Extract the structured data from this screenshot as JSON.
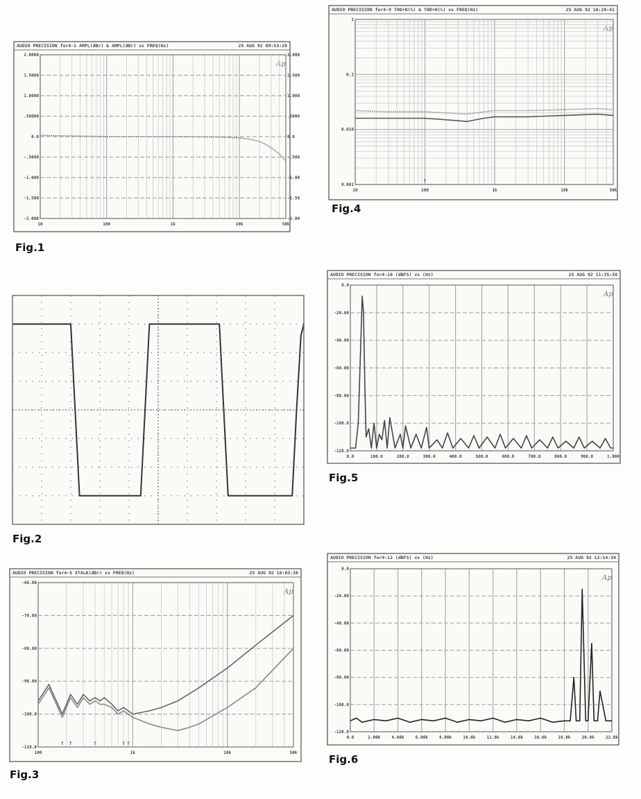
{
  "captions": [
    "Fig.1",
    "Fig.2",
    "Fig.3",
    "Fig.4",
    "Fig.5",
    "Fig.6"
  ],
  "logo_text": "Ap",
  "chart_data": [
    {
      "id": "fig1",
      "type": "line",
      "header": "AUDIO PRECISION for4-1 AMPL(dBr) & AMPL(dBr) vs FREQ(Hz)",
      "date": "25 AUG 92 09:53:28",
      "x_scale": "log",
      "xlim": [
        10,
        50000
      ],
      "ylim": [
        -2,
        2
      ],
      "x_ticks": [
        {
          "v": 10,
          "l": "10"
        },
        {
          "v": 100,
          "l": "100"
        },
        {
          "v": 1000,
          "l": "1k"
        },
        {
          "v": 10000,
          "l": "10k"
        },
        {
          "v": 50000,
          "l": "50k"
        }
      ],
      "y_ticks_left": [
        {
          "v": 2,
          "l": "2.0000"
        },
        {
          "v": 1.5,
          "l": "1.5000"
        },
        {
          "v": 1,
          "l": "1.0000"
        },
        {
          "v": 0.5,
          "l": ".50000"
        },
        {
          "v": 0,
          "l": "0.0"
        },
        {
          "v": -0.5,
          "l": "-.5000"
        },
        {
          "v": -1,
          "l": "-1.000"
        },
        {
          "v": -1.5,
          "l": "-1.500"
        },
        {
          "v": -2,
          "l": "-2.000"
        }
      ],
      "y_ticks_right": [
        {
          "v": 2,
          "l": "2.000"
        },
        {
          "v": 1.5,
          "l": "1.500"
        },
        {
          "v": 1,
          "l": "1.000"
        },
        {
          "v": 0.5,
          "l": ".5000"
        },
        {
          "v": 0,
          "l": "0.0"
        },
        {
          "v": -0.5,
          "l": "-.500"
        },
        {
          "v": -1,
          "l": "-1.00"
        },
        {
          "v": -1.5,
          "l": "-1.50"
        },
        {
          "v": -2,
          "l": "-2.00"
        }
      ],
      "series": [
        {
          "x": [
            10,
            20,
            50,
            100,
            500,
            1000,
            5000,
            10000,
            15000,
            20000,
            25000,
            30000,
            40000,
            50000
          ],
          "y": [
            0.03,
            0.02,
            0.01,
            0.0,
            0.0,
            0.0,
            -0.01,
            -0.03,
            -0.07,
            -0.12,
            -0.19,
            -0.27,
            -0.42,
            -0.6
          ],
          "color": "#888",
          "dash": "2,1"
        }
      ]
    },
    {
      "id": "fig2",
      "type": "line",
      "x_scale": "linear",
      "xlim": [
        0,
        10
      ],
      "ylim": [
        -4,
        4
      ],
      "series": [
        {
          "x": [
            0,
            2,
            2.15,
            2.3,
            4.4,
            4.55,
            4.7,
            7.1,
            7.25,
            7.4,
            9.6,
            9.75,
            9.9,
            10
          ],
          "y": [
            3,
            3,
            0,
            -3,
            -3,
            0,
            3,
            3,
            0,
            -3,
            -3,
            0,
            2.6,
            3
          ],
          "color": "#333"
        }
      ]
    },
    {
      "id": "fig3",
      "type": "line",
      "header": "AUDIO PRECISION for4-5 XTALK(dBr) vs FREQ(Hz)",
      "date": "25 AUG 92 10:03:38",
      "x_scale": "log",
      "xlim": [
        100,
        50000
      ],
      "ylim": [
        -110,
        -60
      ],
      "x_ticks": [
        {
          "v": 100,
          "l": "100"
        },
        {
          "v": 1000,
          "l": "1k"
        },
        {
          "v": 10000,
          "l": "10k"
        },
        {
          "v": 50000,
          "l": "50k"
        }
      ],
      "y_ticks_left": [
        {
          "v": -60,
          "l": "-60.00"
        },
        {
          "v": -70,
          "l": "-70.00"
        },
        {
          "v": -80,
          "l": "-80.00"
        },
        {
          "v": -90,
          "l": "-90.00"
        },
        {
          "v": -100,
          "l": "-100.0"
        },
        {
          "v": -110,
          "l": "-110.0"
        }
      ],
      "markers": [
        "T",
        "T",
        "T",
        "T",
        "T"
      ],
      "marker_x": [
        180,
        220,
        400,
        800,
        900
      ],
      "series": [
        {
          "x": [
            100,
            130,
            180,
            220,
            260,
            300,
            350,
            400,
            450,
            500,
            600,
            700,
            800,
            1000,
            1500,
            2000,
            3000,
            5000,
            10000,
            20000,
            50000
          ],
          "y": [
            -96,
            -91,
            -100,
            -94,
            -97,
            -94,
            -96,
            -95,
            -96,
            -95,
            -97,
            -99,
            -98,
            -100,
            -99,
            -98,
            -96,
            -92,
            -86,
            -79,
            -70
          ],
          "color": "#666"
        },
        {
          "x": [
            100,
            130,
            180,
            220,
            260,
            300,
            350,
            400,
            450,
            500,
            600,
            700,
            800,
            1000,
            1500,
            2000,
            3000,
            4000,
            5000,
            10000,
            20000,
            50000
          ],
          "y": [
            -97,
            -92,
            -101,
            -95,
            -98,
            -95,
            -97,
            -96,
            -97,
            -97,
            -98,
            -100,
            -99,
            -101,
            -103,
            -104,
            -105,
            -104,
            -103,
            -98,
            -92,
            -80
          ],
          "color": "#888"
        }
      ]
    },
    {
      "id": "fig4",
      "type": "line",
      "header": "AUDIO PRECISION for4-9 THD+N(%) & THD+N(%) vs FREQ(Hz)",
      "date": "25 AUG 92 10:28:41",
      "x_scale": "log",
      "y_scale": "log",
      "xlim": [
        10,
        50000
      ],
      "ylim": [
        0.001,
        1
      ],
      "x_ticks": [
        {
          "v": 10,
          "l": "10"
        },
        {
          "v": 100,
          "l": "100"
        },
        {
          "v": 1000,
          "l": "1k"
        },
        {
          "v": 10000,
          "l": "10k"
        },
        {
          "v": 50000,
          "l": "50k"
        }
      ],
      "y_ticks_left": [
        {
          "v": 1,
          "l": "1"
        },
        {
          "v": 0.1,
          "l": "0.1"
        },
        {
          "v": 0.01,
          "l": "0.010"
        },
        {
          "v": 0.001,
          "l": "0.001"
        }
      ],
      "markers": [
        "T"
      ],
      "marker_x": [
        100
      ],
      "series": [
        {
          "x": [
            10,
            30,
            100,
            200,
            400,
            700,
            1000,
            3000,
            10000,
            30000,
            50000
          ],
          "y": [
            0.016,
            0.016,
            0.016,
            0.015,
            0.014,
            0.016,
            0.017,
            0.017,
            0.018,
            0.019,
            0.018
          ],
          "color": "#555"
        },
        {
          "x": [
            10,
            30,
            100,
            200,
            400,
            700,
            1000,
            3000,
            10000,
            30000,
            50000
          ],
          "y": [
            0.022,
            0.021,
            0.021,
            0.02,
            0.019,
            0.021,
            0.022,
            0.022,
            0.023,
            0.024,
            0.023
          ],
          "color": "#999",
          "dash": "2,1"
        }
      ]
    },
    {
      "id": "fig5",
      "type": "line",
      "header": "AUDIO PRECISION for4-10 (dBFS) vs (Hz)",
      "date": "25 AUG 92 11:35:38",
      "x_scale": "linear",
      "xlim": [
        0,
        1000
      ],
      "ylim": [
        -120,
        0
      ],
      "x_ticks": [
        {
          "v": 0,
          "l": "0.0"
        },
        {
          "v": 100,
          "l": "100.0"
        },
        {
          "v": 200,
          "l": "200.0"
        },
        {
          "v": 300,
          "l": "300.0"
        },
        {
          "v": 400,
          "l": "400.0"
        },
        {
          "v": 500,
          "l": "500.0"
        },
        {
          "v": 600,
          "l": "600.0"
        },
        {
          "v": 700,
          "l": "700.0"
        },
        {
          "v": 800,
          "l": "800.0"
        },
        {
          "v": 900,
          "l": "900.0"
        },
        {
          "v": 1000,
          "l": "1.000"
        }
      ],
      "y_ticks_left": [
        {
          "v": 0,
          "l": "0.0"
        },
        {
          "v": -20,
          "l": "-20.00"
        },
        {
          "v": -40,
          "l": "-40.00"
        },
        {
          "v": -60,
          "l": "-60.00"
        },
        {
          "v": -80,
          "l": "-80.00"
        },
        {
          "v": -100,
          "l": "-100.0"
        },
        {
          "v": -120,
          "l": "-120.0"
        }
      ],
      "series": [
        {
          "x": [
            0,
            20,
            30,
            40,
            45,
            50,
            55,
            60,
            70,
            80,
            90,
            100,
            110,
            120,
            130,
            140,
            150,
            170,
            190,
            200,
            210,
            230,
            250,
            270,
            290,
            300,
            330,
            350,
            370,
            390,
            420,
            450,
            470,
            490,
            520,
            550,
            570,
            590,
            620,
            650,
            670,
            690,
            720,
            750,
            770,
            790,
            820,
            850,
            870,
            890,
            920,
            950,
            970,
            990,
            1000
          ],
          "y": [
            -118,
            -118,
            -100,
            -40,
            -8,
            -20,
            -70,
            -110,
            -104,
            -118,
            -100,
            -118,
            -108,
            -112,
            -98,
            -118,
            -96,
            -118,
            -108,
            -118,
            -102,
            -118,
            -108,
            -118,
            -103,
            -118,
            -112,
            -118,
            -107,
            -118,
            -111,
            -118,
            -109,
            -118,
            -110,
            -118,
            -108,
            -118,
            -111,
            -118,
            -109,
            -118,
            -112,
            -118,
            -110,
            -118,
            -113,
            -118,
            -110,
            -118,
            -113,
            -118,
            -111,
            -118,
            -118
          ],
          "color": "#444"
        }
      ]
    },
    {
      "id": "fig6",
      "type": "line",
      "header": "AUDIO PRECISION for4-11 (dBFS) vs (Hz)",
      "date": "25 AUG 92 12:14:34",
      "x_scale": "linear",
      "xlim": [
        0,
        22000
      ],
      "ylim": [
        -120,
        0
      ],
      "x_ticks": [
        {
          "v": 0,
          "l": "0.0"
        },
        {
          "v": 2000,
          "l": "2.00k"
        },
        {
          "v": 4000,
          "l": "4.00k"
        },
        {
          "v": 6000,
          "l": "6.00k"
        },
        {
          "v": 8000,
          "l": "8.00k"
        },
        {
          "v": 10000,
          "l": "10.0k"
        },
        {
          "v": 12000,
          "l": "12.0k"
        },
        {
          "v": 14000,
          "l": "14.0k"
        },
        {
          "v": 16000,
          "l": "16.0k"
        },
        {
          "v": 18000,
          "l": "18.0k"
        },
        {
          "v": 20000,
          "l": "20.0k"
        },
        {
          "v": 22000,
          "l": "22.0k"
        }
      ],
      "y_ticks_left": [
        {
          "v": 0,
          "l": "0.0"
        },
        {
          "v": -20,
          "l": "-20.00"
        },
        {
          "v": -40,
          "l": "-40.00"
        },
        {
          "v": -60,
          "l": "-60.00"
        },
        {
          "v": -80,
          "l": "-80.00"
        },
        {
          "v": -100,
          "l": "-100.0"
        },
        {
          "v": -120,
          "l": "-120.0"
        }
      ],
      "series": [
        {
          "x": [
            0,
            500,
            1000,
            2000,
            3000,
            4000,
            5000,
            6000,
            7000,
            8000,
            9000,
            10000,
            11000,
            12000,
            13000,
            14000,
            15000,
            16000,
            17000,
            18000,
            18500,
            18800,
            19000,
            19300,
            19500,
            19800,
            20000,
            20300,
            20500,
            20800,
            21000,
            21500,
            22000
          ],
          "y": [
            -112,
            -110,
            -113,
            -111,
            -112,
            -110,
            -113,
            -111,
            -112,
            -110,
            -113,
            -111,
            -112,
            -110,
            -113,
            -111,
            -112,
            -110,
            -113,
            -112,
            -112,
            -80,
            -112,
            -112,
            -15,
            -112,
            -112,
            -55,
            -112,
            -112,
            -90,
            -112,
            -112
          ],
          "color": "#222"
        }
      ]
    }
  ]
}
